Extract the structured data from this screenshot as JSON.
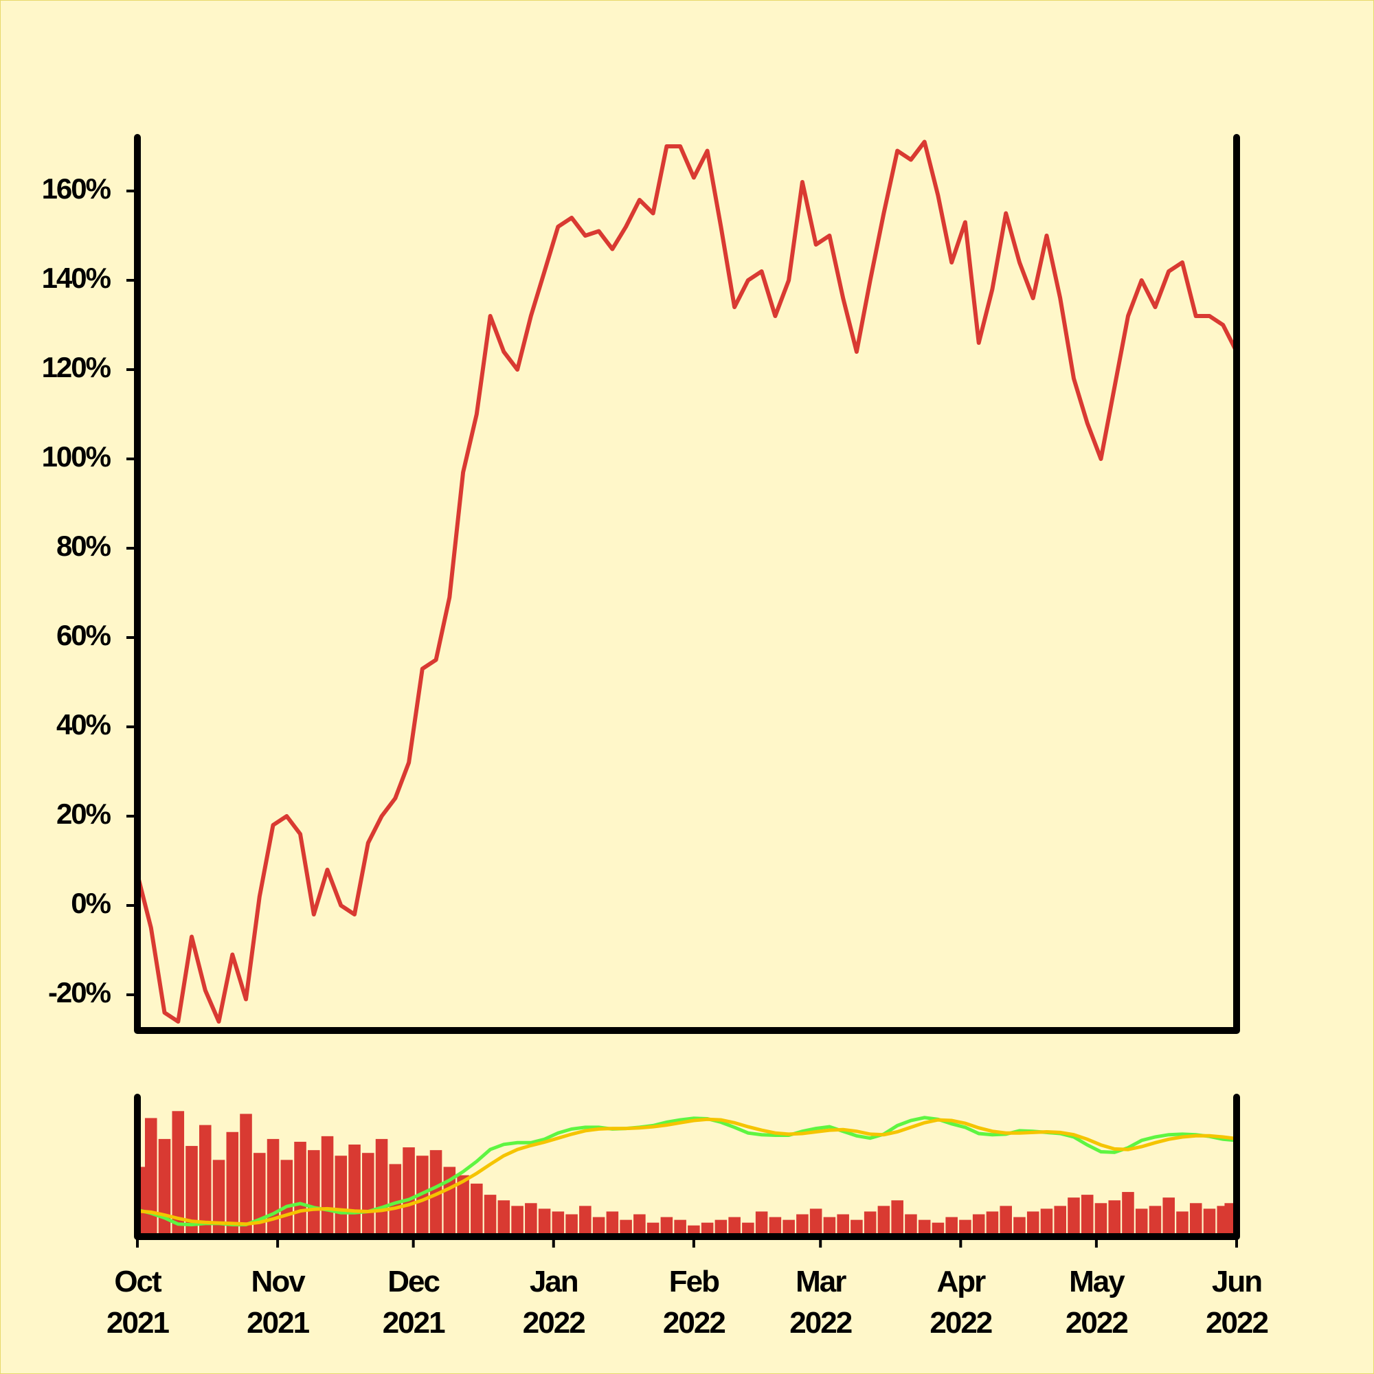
{
  "chart_data": [
    {
      "type": "line",
      "x": [
        "2021-10-01",
        "2021-10-04",
        "2021-10-07",
        "2021-10-10",
        "2021-10-13",
        "2021-10-16",
        "2021-10-19",
        "2021-10-22",
        "2021-10-25",
        "2021-10-28",
        "2021-10-31",
        "2021-11-03",
        "2021-11-06",
        "2021-11-09",
        "2021-11-12",
        "2021-11-15",
        "2021-11-18",
        "2021-11-21",
        "2021-11-24",
        "2021-11-27",
        "2021-11-30",
        "2021-12-03",
        "2021-12-06",
        "2021-12-09",
        "2021-12-12",
        "2021-12-15",
        "2021-12-18",
        "2021-12-21",
        "2021-12-24",
        "2021-12-27",
        "2021-12-30",
        "2022-01-02",
        "2022-01-05",
        "2022-01-08",
        "2022-01-11",
        "2022-01-14",
        "2022-01-17",
        "2022-01-20",
        "2022-01-23",
        "2022-01-26",
        "2022-01-29",
        "2022-02-01",
        "2022-02-04",
        "2022-02-07",
        "2022-02-10",
        "2022-02-13",
        "2022-02-16",
        "2022-02-19",
        "2022-02-22",
        "2022-02-25",
        "2022-02-28",
        "2022-03-03",
        "2022-03-06",
        "2022-03-09",
        "2022-03-12",
        "2022-03-15",
        "2022-03-18",
        "2022-03-21",
        "2022-03-24",
        "2022-03-27",
        "2022-03-30",
        "2022-04-02",
        "2022-04-05",
        "2022-04-08",
        "2022-04-11",
        "2022-04-14",
        "2022-04-17",
        "2022-04-20",
        "2022-04-23",
        "2022-04-26",
        "2022-04-29",
        "2022-05-02",
        "2022-05-05",
        "2022-05-08",
        "2022-05-11",
        "2022-05-14",
        "2022-05-17",
        "2022-05-20",
        "2022-05-23",
        "2022-05-26",
        "2022-05-29",
        "2022-06-01"
      ],
      "values": [
        7,
        -5,
        -24,
        -26,
        -7,
        -19,
        -26,
        -11,
        -21,
        2,
        18,
        20,
        16,
        -2,
        8,
        0,
        -2,
        14,
        20,
        24,
        32,
        53,
        55,
        69,
        97,
        110,
        132,
        124,
        120,
        132,
        142,
        152,
        154,
        150,
        151,
        147,
        152,
        158,
        155,
        170,
        170,
        163,
        169,
        152,
        134,
        140,
        142,
        132,
        140,
        162,
        148,
        150,
        136,
        124,
        140,
        155,
        169,
        167,
        171,
        159,
        144,
        153,
        126,
        138,
        155,
        144,
        136,
        150,
        136,
        118,
        108,
        100,
        116,
        132,
        140,
        134,
        142,
        144,
        132,
        132,
        130,
        124
      ],
      "color": "#d93a32",
      "xlim": [
        "2021-10-01",
        "2022-06-01"
      ],
      "ylim": [
        -28,
        172
      ],
      "yticks": [
        {
          "value": -20,
          "label": "-20%"
        },
        {
          "value": 0,
          "label": "0%"
        },
        {
          "value": 20,
          "label": "20%"
        },
        {
          "value": 40,
          "label": "40%"
        },
        {
          "value": 60,
          "label": "60%"
        },
        {
          "value": 80,
          "label": "80%"
        },
        {
          "value": 100,
          "label": "100%"
        },
        {
          "value": 120,
          "label": "120%"
        },
        {
          "value": 140,
          "label": "140%"
        },
        {
          "value": 160,
          "label": "160%"
        }
      ]
    },
    {
      "type": "bar",
      "x": [
        "2021-10-01",
        "2021-10-04",
        "2021-10-07",
        "2021-10-10",
        "2021-10-13",
        "2021-10-16",
        "2021-10-19",
        "2021-10-22",
        "2021-10-25",
        "2021-10-28",
        "2021-10-31",
        "2021-11-03",
        "2021-11-06",
        "2021-11-09",
        "2021-11-12",
        "2021-11-15",
        "2021-11-18",
        "2021-11-21",
        "2021-11-24",
        "2021-11-27",
        "2021-11-30",
        "2021-12-03",
        "2021-12-06",
        "2021-12-09",
        "2021-12-12",
        "2021-12-15",
        "2021-12-18",
        "2021-12-21",
        "2021-12-24",
        "2021-12-27",
        "2021-12-30",
        "2022-01-02",
        "2022-01-05",
        "2022-01-08",
        "2022-01-11",
        "2022-01-14",
        "2022-01-17",
        "2022-01-20",
        "2022-01-23",
        "2022-01-26",
        "2022-01-29",
        "2022-02-01",
        "2022-02-04",
        "2022-02-07",
        "2022-02-10",
        "2022-02-13",
        "2022-02-16",
        "2022-02-19",
        "2022-02-22",
        "2022-02-25",
        "2022-02-28",
        "2022-03-03",
        "2022-03-06",
        "2022-03-09",
        "2022-03-12",
        "2022-03-15",
        "2022-03-18",
        "2022-03-21",
        "2022-03-24",
        "2022-03-27",
        "2022-03-30",
        "2022-04-02",
        "2022-04-05",
        "2022-04-08",
        "2022-04-11",
        "2022-04-14",
        "2022-04-17",
        "2022-04-20",
        "2022-04-23",
        "2022-04-26",
        "2022-04-29",
        "2022-05-02",
        "2022-05-05",
        "2022-05-08",
        "2022-05-11",
        "2022-05-14",
        "2022-05-17",
        "2022-05-20",
        "2022-05-23",
        "2022-05-26",
        "2022-05-29",
        "2022-06-01"
      ],
      "values": [
        50,
        85,
        70,
        90,
        65,
        80,
        55,
        75,
        88,
        60,
        70,
        55,
        68,
        62,
        72,
        58,
        66,
        60,
        70,
        52,
        64,
        58,
        62,
        50,
        44,
        38,
        30,
        26,
        22,
        24,
        20,
        18,
        16,
        22,
        14,
        18,
        12,
        16,
        10,
        14,
        12,
        8,
        10,
        12,
        14,
        10,
        18,
        14,
        12,
        16,
        20,
        14,
        16,
        12,
        18,
        22,
        26,
        16,
        12,
        10,
        14,
        12,
        16,
        18,
        22,
        14,
        18,
        20,
        22,
        28,
        30,
        24,
        26,
        32,
        20,
        22,
        28,
        18,
        24,
        20,
        22,
        24
      ],
      "color": "#d93a32",
      "xlim": [
        "2021-10-01",
        "2022-06-01"
      ],
      "ylim": [
        0,
        100
      ],
      "y2lim": [
        -40,
        205
      ],
      "overlays": [
        {
          "color": "#5ef542",
          "axis": "y2",
          "values": [
            7,
            1,
            -7,
            -18,
            -19,
            -17,
            -17,
            -19,
            -19,
            -10,
            0,
            13,
            18,
            11,
            7,
            2,
            2,
            4,
            11,
            19,
            25,
            36,
            47,
            59,
            74,
            92,
            113,
            122,
            125,
            125,
            131,
            142,
            149,
            152,
            152,
            149,
            150,
            152,
            155,
            161,
            165,
            168,
            167,
            161,
            152,
            142,
            139,
            138,
            138,
            145,
            150,
            153,
            145,
            137,
            133,
            140,
            155,
            164,
            169,
            166,
            158,
            152,
            141,
            139,
            140,
            146,
            145,
            143,
            141,
            135,
            121,
            109,
            108,
            116,
            129,
            135,
            139,
            140,
            139,
            136,
            131,
            129
          ]
        },
        {
          "color": "#f5c400",
          "axis": "y2",
          "values": [
            5,
            3,
            -2,
            -8,
            -13,
            -15,
            -16,
            -17,
            -18,
            -15,
            -9,
            -2,
            5,
            8,
            9,
            7,
            5,
            4,
            6,
            10,
            16,
            24,
            34,
            45,
            57,
            71,
            87,
            102,
            113,
            120,
            126,
            133,
            140,
            146,
            149,
            150,
            150,
            151,
            153,
            156,
            160,
            164,
            166,
            165,
            160,
            153,
            147,
            142,
            140,
            141,
            144,
            147,
            148,
            145,
            140,
            139,
            144,
            152,
            160,
            165,
            164,
            159,
            151,
            145,
            142,
            142,
            143,
            144,
            143,
            139,
            131,
            121,
            114,
            113,
            118,
            125,
            131,
            135,
            137,
            137,
            135,
            132
          ]
        }
      ],
      "xticks": [
        {
          "value": "2021-10-01",
          "label": "Oct\n2021"
        },
        {
          "value": "2021-11-01",
          "label": "Nov\n2021"
        },
        {
          "value": "2021-12-01",
          "label": "Dec\n2021"
        },
        {
          "value": "2022-01-01",
          "label": "Jan\n2022"
        },
        {
          "value": "2022-02-01",
          "label": "Feb\n2022"
        },
        {
          "value": "2022-03-01",
          "label": "Mar\n2022"
        },
        {
          "value": "2022-04-01",
          "label": "Apr\n2022"
        },
        {
          "value": "2022-05-01",
          "label": "May\n2022"
        },
        {
          "value": "2022-06-01",
          "label": "Jun\n2022"
        }
      ]
    }
  ]
}
